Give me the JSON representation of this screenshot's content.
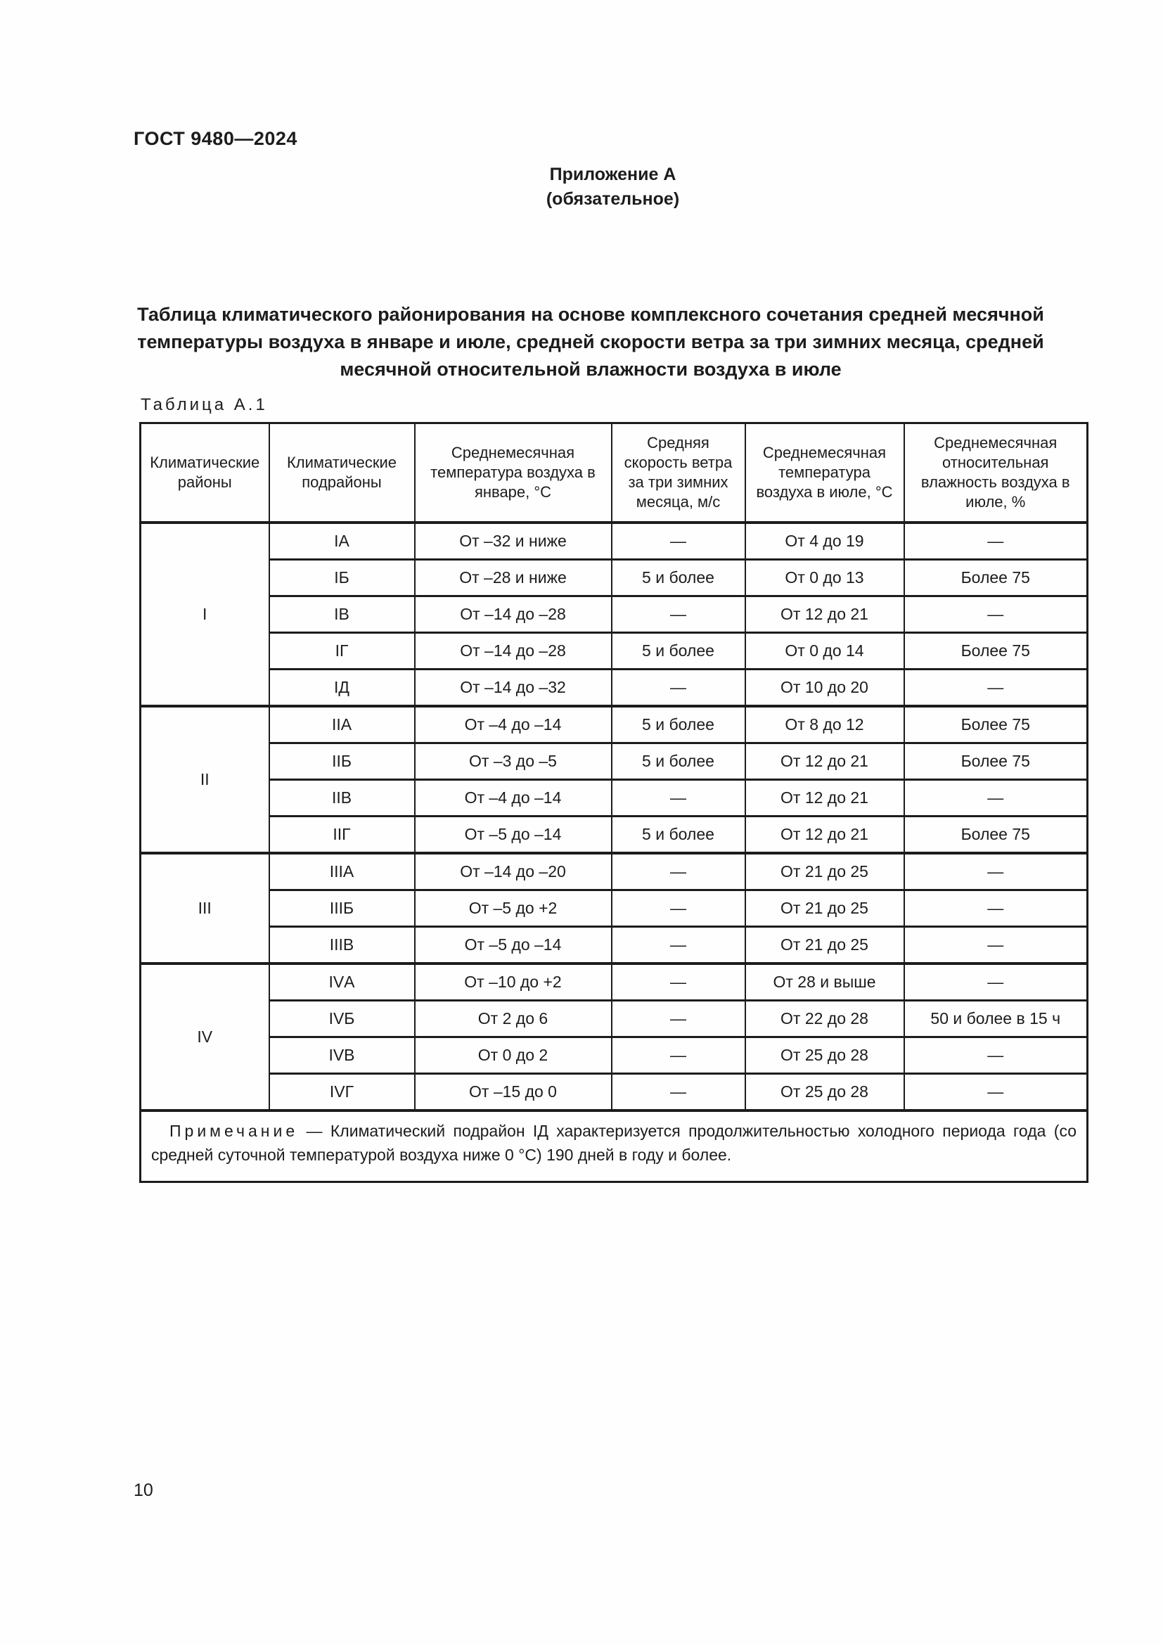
{
  "page": {
    "doc_code": "ГОСТ 9480—2024",
    "page_number": "10"
  },
  "appendix": {
    "title": "Приложение А",
    "subtitle": "(обязательное)"
  },
  "main_title": {
    "line1": "Таблица климатического районирования на основе комплексного сочетания средней месячной",
    "line2": "температуры воздуха в январе и июле, средней скорости ветра за три зимних месяца, средней",
    "line3": "месячной относительной влажности воздуха в июле"
  },
  "table": {
    "caption": "Таблица А.1",
    "headers": [
      "Климатические районы",
      "Климатические подрайоны",
      "Среднемесячная температура воздуха в январе, °С",
      "Средняя скорость ветра за три зимних месяца, м/с",
      "Среднемесячная температура воздуха в июле, °С",
      "Среднемесячная относительная влажность воздуха в  июле, %"
    ],
    "groups": [
      {
        "region": "I",
        "rows": [
          [
            "IА",
            "От –32 и ниже",
            "—",
            "От 4 до 19",
            "—"
          ],
          [
            "IБ",
            "От –28 и ниже",
            "5 и более",
            "От 0 до 13",
            "Более 75"
          ],
          [
            "IВ",
            "От –14 до –28",
            "—",
            "От 12 до 21",
            "—"
          ],
          [
            "IГ",
            "От –14 до –28",
            "5 и более",
            "От 0 до 14",
            "Более 75"
          ],
          [
            "IД",
            "От –14 до –32",
            "—",
            "От 10 до 20",
            "—"
          ]
        ]
      },
      {
        "region": "II",
        "rows": [
          [
            "IIА",
            "От –4 до –14",
            "5 и более",
            "От 8 до 12",
            "Более 75"
          ],
          [
            "IIБ",
            "От –3 до –5",
            "5 и более",
            "От 12 до 21",
            "Более 75"
          ],
          [
            "IIВ",
            "От –4 до –14",
            "—",
            "От 12 до 21",
            "—"
          ],
          [
            "IIГ",
            "От –5 до –14",
            "5 и более",
            "От 12 до 21",
            "Более 75"
          ]
        ]
      },
      {
        "region": "III",
        "rows": [
          [
            "IIIА",
            "От –14 до –20",
            "—",
            "От 21 до 25",
            "—"
          ],
          [
            "IIIБ",
            "От –5 до +2",
            "—",
            "От 21 до 25",
            "—"
          ],
          [
            "IIIВ",
            "От –5 до –14",
            "—",
            "От 21 до 25",
            "—"
          ]
        ]
      },
      {
        "region": "IV",
        "rows": [
          [
            "IVА",
            "От –10 до +2",
            "—",
            "От 28 и выше",
            "—"
          ],
          [
            "IVБ",
            "От 2 до 6",
            "—",
            "От 22 до 28",
            "50 и более в 15 ч"
          ],
          [
            "IVВ",
            "От 0 до 2",
            "—",
            "От 25 до 28",
            "—"
          ],
          [
            "IVГ",
            "От –15 до 0",
            "—",
            "От 25 до 28",
            "—"
          ]
        ]
      }
    ],
    "note_label": "Примечание",
    "note_text": "— Климатический подрайон IД характеризуется продолжительностью холодного периода года (со средней суточной температурой воздуха ниже 0 °С) 190 дней в году и более."
  }
}
